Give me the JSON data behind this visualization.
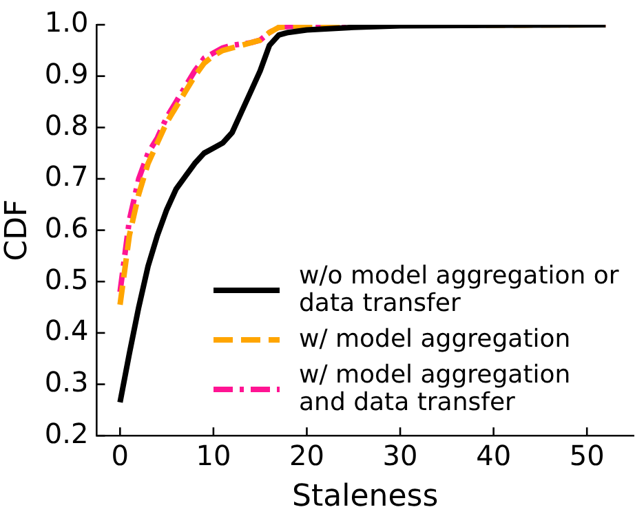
{
  "chart_data": {
    "type": "line",
    "xlabel": "Staleness",
    "ylabel": "CDF",
    "xlim": [
      -2.5,
      55
    ],
    "xticks": [
      0,
      10,
      20,
      30,
      40,
      50
    ],
    "ylim": [
      0.2,
      1.0
    ],
    "yticks": [
      0.2,
      0.3,
      0.4,
      0.5,
      0.6,
      0.7,
      0.8,
      0.9,
      {
        "value": 1.0,
        "label": "1.0"
      }
    ],
    "grid": false,
    "legend": "bottom right",
    "marker": "none",
    "series": [
      {
        "name": "w/o model aggregation or data transfer",
        "color": "#000000",
        "line_style": "solid",
        "x": [
          0,
          1,
          2,
          3,
          4,
          5,
          6,
          7,
          8,
          9,
          10,
          11,
          12,
          13,
          14,
          15,
          16,
          17,
          18,
          20,
          25,
          30,
          52
        ],
        "values": [
          0.265,
          0.36,
          0.45,
          0.53,
          0.59,
          0.64,
          0.68,
          0.705,
          0.73,
          0.75,
          0.76,
          0.77,
          0.79,
          0.83,
          0.87,
          0.91,
          0.96,
          0.98,
          0.985,
          0.99,
          0.995,
          0.998,
          1.0
        ]
      },
      {
        "name": "w/ model aggregation",
        "color": "#ffa500",
        "line_style": "dashed",
        "x": [
          0,
          1,
          2,
          3,
          4,
          5,
          6,
          7,
          8,
          9,
          10,
          11,
          12,
          14,
          15,
          16,
          17,
          20,
          52
        ],
        "values": [
          0.455,
          0.59,
          0.67,
          0.73,
          0.77,
          0.81,
          0.84,
          0.87,
          0.9,
          0.925,
          0.94,
          0.95,
          0.955,
          0.965,
          0.97,
          0.985,
          0.995,
          0.998,
          1.0
        ]
      },
      {
        "name": "w/ model aggregation and data transfer",
        "color": "#ff1493",
        "line_style": "dashdot",
        "x": [
          0,
          1,
          2,
          3,
          4,
          5,
          6,
          7,
          8,
          9,
          10,
          11,
          12,
          14,
          15,
          16,
          17,
          20,
          52
        ],
        "values": [
          0.48,
          0.62,
          0.7,
          0.75,
          0.78,
          0.82,
          0.85,
          0.88,
          0.91,
          0.935,
          0.945,
          0.955,
          0.96,
          0.965,
          0.97,
          0.985,
          0.995,
          1.0,
          1.0
        ]
      }
    ]
  }
}
